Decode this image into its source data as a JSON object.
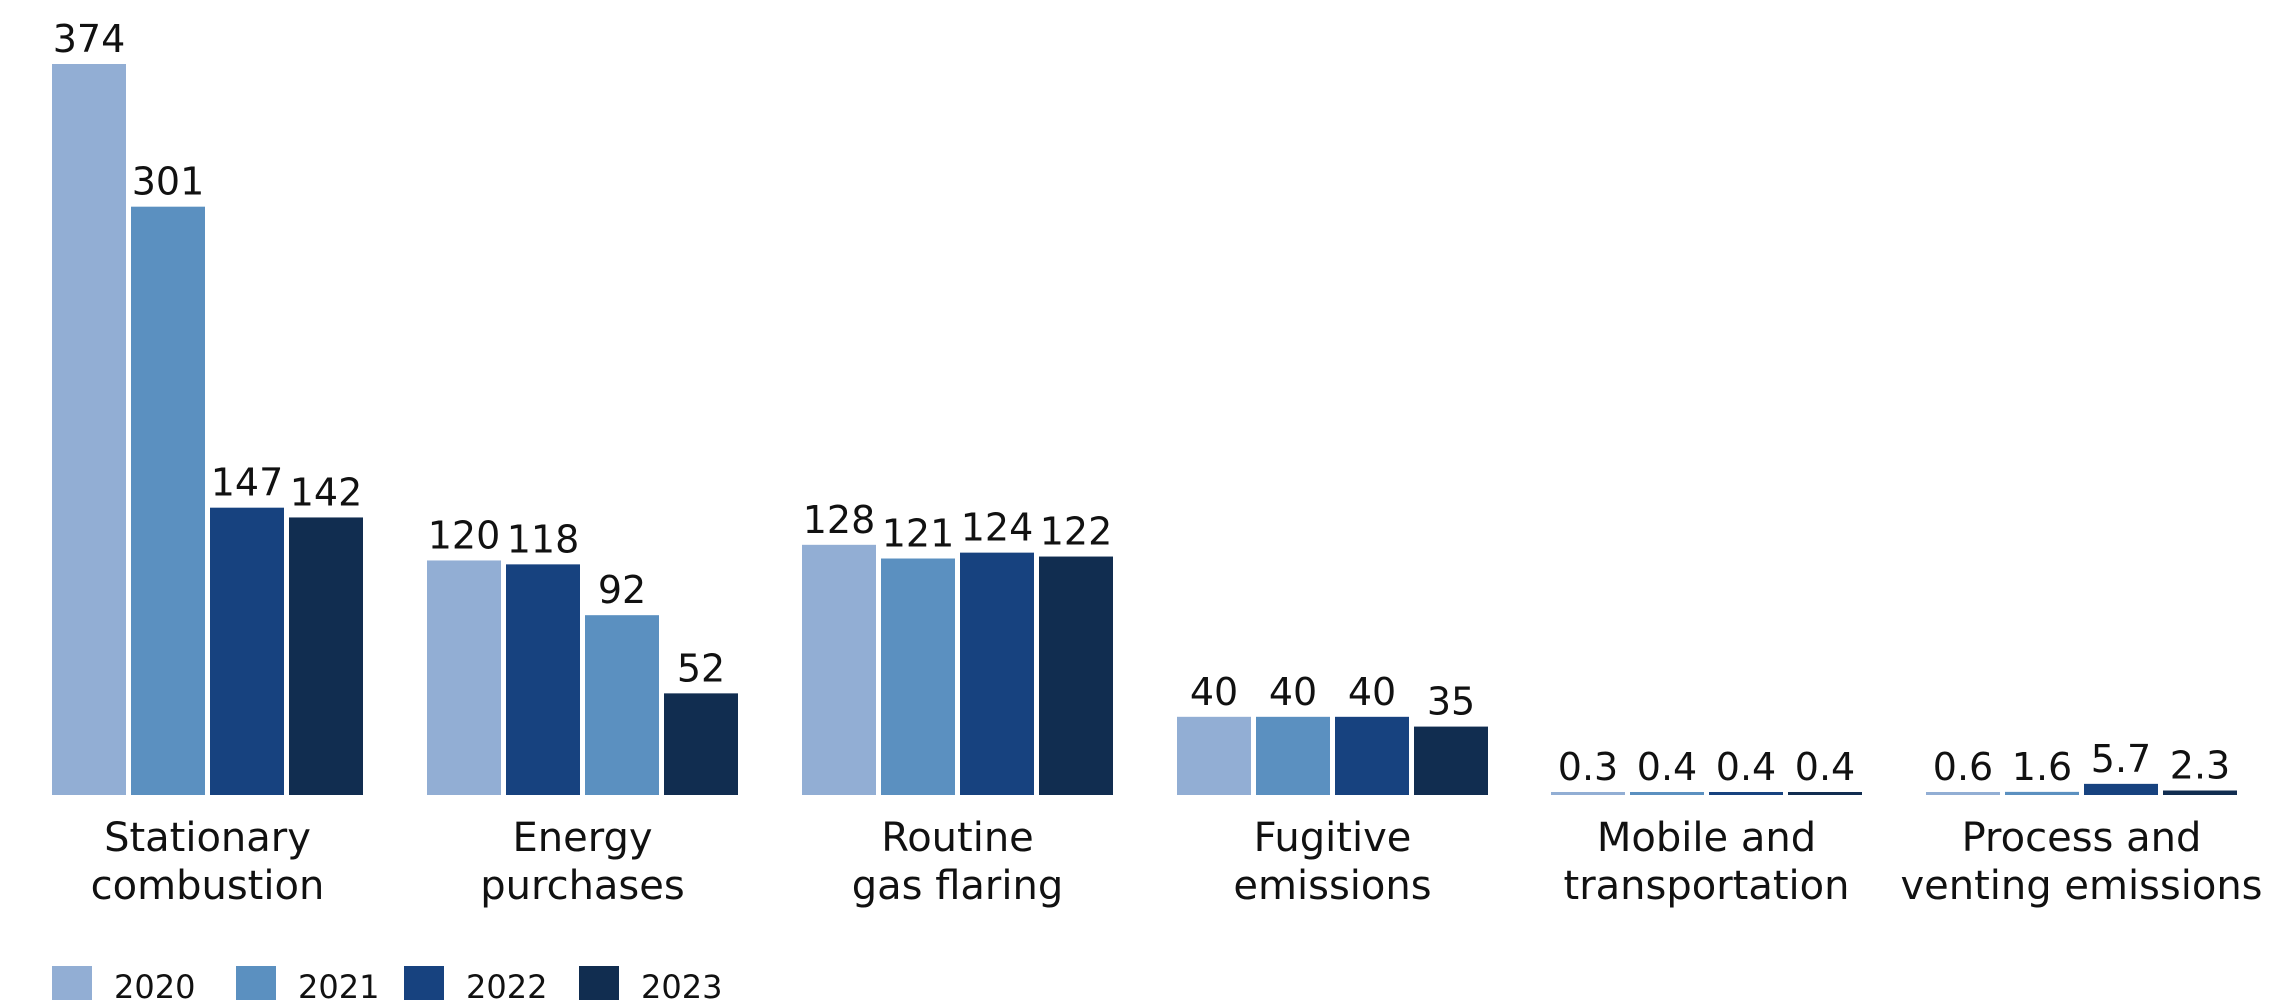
{
  "chart_data": {
    "type": "bar",
    "title": "",
    "xlabel": "",
    "ylabel": "",
    "categories": [
      [
        "Stationary",
        "combustion"
      ],
      [
        "Energy",
        "purchases"
      ],
      [
        "Routine",
        "gas flaring"
      ],
      [
        "Fugitive",
        "emissions"
      ],
      [
        "Mobile and",
        "transportation"
      ],
      [
        "Process and",
        "venting emissions"
      ]
    ],
    "series": [
      {
        "name": "2020",
        "color": "#92AED4"
      },
      {
        "name": "2021",
        "color": "#5B90C0"
      },
      {
        "name": "2022",
        "color": "#17427F"
      },
      {
        "name": "2023",
        "color": "#112D50"
      }
    ],
    "bars": [
      [
        {
          "value": 374,
          "label": "374",
          "series": 0
        },
        {
          "value": 301,
          "label": "301",
          "series": 1
        },
        {
          "value": 147,
          "label": "147",
          "series": 2
        },
        {
          "value": 142,
          "label": "142",
          "series": 3
        }
      ],
      [
        {
          "value": 120,
          "label": "120",
          "series": 0
        },
        {
          "value": 118,
          "label": "118",
          "series": 2
        },
        {
          "value": 92,
          "label": "92",
          "series": 1
        },
        {
          "value": 52,
          "label": "52",
          "series": 3
        }
      ],
      [
        {
          "value": 128,
          "label": "128",
          "series": 0
        },
        {
          "value": 121,
          "label": "121",
          "series": 1
        },
        {
          "value": 124,
          "label": "124",
          "series": 2
        },
        {
          "value": 122,
          "label": "122",
          "series": 3
        }
      ],
      [
        {
          "value": 40,
          "label": "40",
          "series": 0
        },
        {
          "value": 40,
          "label": "40",
          "series": 1
        },
        {
          "value": 40,
          "label": "40",
          "series": 2
        },
        {
          "value": 35,
          "label": "35",
          "series": 3
        }
      ],
      [
        {
          "value": 0.3,
          "label": "0.3",
          "series": 0
        },
        {
          "value": 0.4,
          "label": "0.4",
          "series": 1
        },
        {
          "value": 0.4,
          "label": "0.4",
          "series": 2
        },
        {
          "value": 0.4,
          "label": "0.4",
          "series": 3
        }
      ],
      [
        {
          "value": 0.6,
          "label": "0.6",
          "series": 0
        },
        {
          "value": 1.6,
          "label": "1.6",
          "series": 1
        },
        {
          "value": 5.7,
          "label": "5.7",
          "series": 2
        },
        {
          "value": 2.3,
          "label": "2.3",
          "series": 3
        }
      ]
    ],
    "ylim": [
      0,
      374
    ],
    "grid": false,
    "legend_position": "bottom-left"
  }
}
